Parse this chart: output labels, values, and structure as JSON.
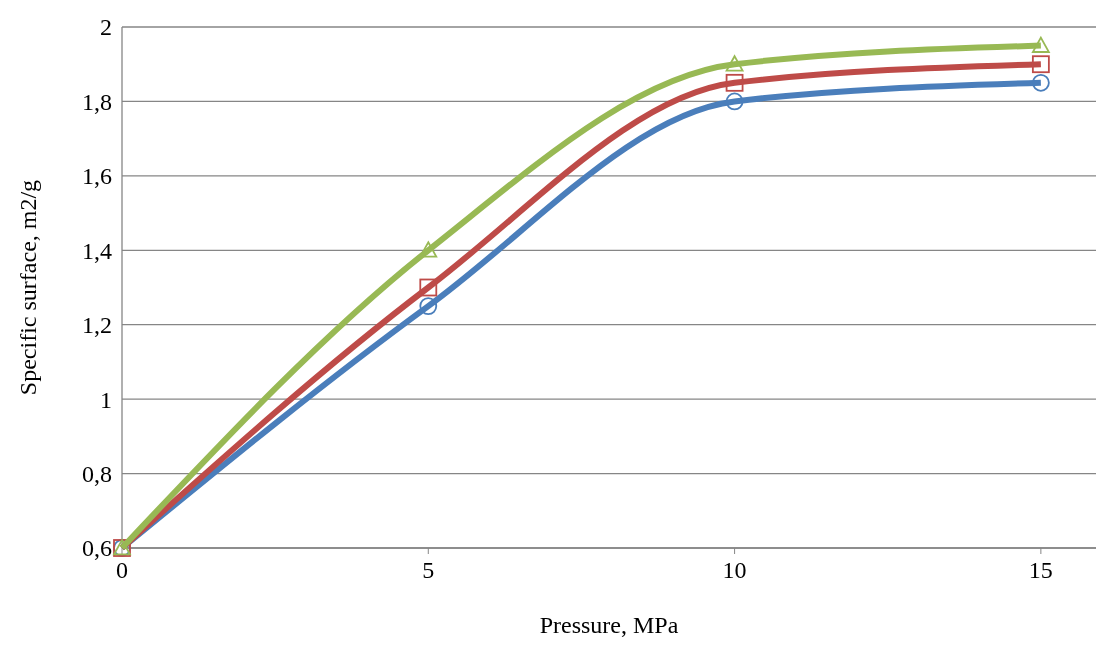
{
  "chart_data": {
    "type": "line",
    "xlabel": "Pressure, MPa",
    "ylabel": "Specific surface, m2/g",
    "x": [
      0,
      5,
      10,
      15
    ],
    "series": [
      {
        "color": "#4a7ebb",
        "marker": "circle",
        "values": [
          0.6,
          1.25,
          1.8,
          1.85
        ]
      },
      {
        "color": "#be4b48",
        "marker": "square",
        "values": [
          0.6,
          1.3,
          1.85,
          1.9
        ]
      },
      {
        "color": "#98b954",
        "marker": "triangle",
        "values": [
          0.6,
          1.4,
          1.9,
          1.95
        ]
      }
    ],
    "xlim": [
      0,
      15.9
    ],
    "xticks": [
      0,
      5,
      10,
      15
    ],
    "ylim": [
      0.6,
      2
    ],
    "yticks": [
      {
        "value": 0.6,
        "label": "0,6"
      },
      {
        "value": 0.8,
        "label": "0,8"
      },
      1,
      {
        "value": 1.2,
        "label": "1,2"
      },
      {
        "value": 1.4,
        "label": "1,4"
      },
      {
        "value": 1.6,
        "label": "1,6"
      },
      {
        "value": 1.8,
        "label": "1,8"
      },
      2
    ],
    "grid": "y"
  }
}
